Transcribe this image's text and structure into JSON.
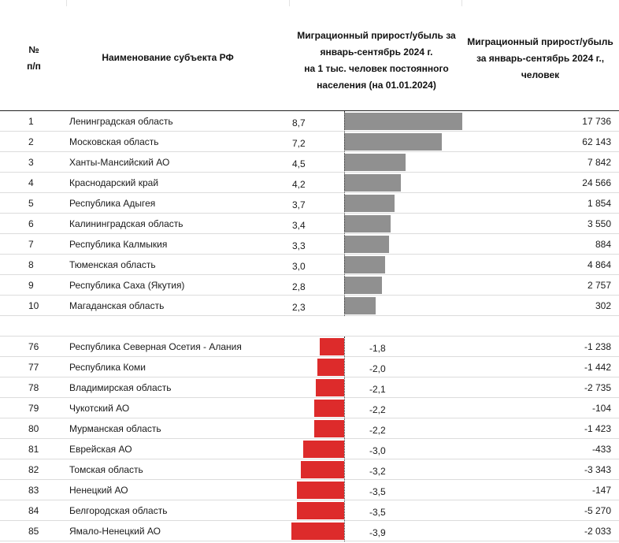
{
  "header": {
    "number": "№\nп/п",
    "name": "Наименование субъекта РФ",
    "rate": "Миграционный прирост/убыль за январь-сентябрь 2024 г.\nна 1 тыс. человек постоянного населения (на 01.01.2024)",
    "absolute": "Миграционный прирост/убыль за январь-сентябрь 2024 г., человек"
  },
  "chart_data": {
    "type": "bar",
    "orientation": "horizontal",
    "title": "Миграционный прирост/убыль за январь-сентябрь 2024 г.",
    "top": [
      {
        "num": "1",
        "name": "Ленинградская область",
        "rate": 8.7,
        "rate_label": "8,7",
        "absolute": "17 736"
      },
      {
        "num": "2",
        "name": "Московская область",
        "rate": 7.2,
        "rate_label": "7,2",
        "absolute": "62 143"
      },
      {
        "num": "3",
        "name": "Ханты-Мансийский АО",
        "rate": 4.5,
        "rate_label": "4,5",
        "absolute": "7 842"
      },
      {
        "num": "4",
        "name": "Краснодарский край",
        "rate": 4.2,
        "rate_label": "4,2",
        "absolute": "24 566"
      },
      {
        "num": "5",
        "name": "Республика Адыгея",
        "rate": 3.7,
        "rate_label": "3,7",
        "absolute": "1 854"
      },
      {
        "num": "6",
        "name": "Калининградская область",
        "rate": 3.4,
        "rate_label": "3,4",
        "absolute": "3 550"
      },
      {
        "num": "7",
        "name": "Республика Калмыкия",
        "rate": 3.3,
        "rate_label": "3,3",
        "absolute": "884"
      },
      {
        "num": "8",
        "name": "Тюменская область",
        "rate": 3.0,
        "rate_label": "3,0",
        "absolute": "4 864"
      },
      {
        "num": "9",
        "name": "Республика Саха (Якутия)",
        "rate": 2.8,
        "rate_label": "2,8",
        "absolute": "2 757"
      },
      {
        "num": "10",
        "name": "Магаданская область",
        "rate": 2.3,
        "rate_label": "2,3",
        "absolute": "302"
      }
    ],
    "bottom": [
      {
        "num": "76",
        "name": "Республика Северная Осетия - Алания",
        "rate": -1.8,
        "rate_label": "-1,8",
        "absolute": "-1 238"
      },
      {
        "num": "77",
        "name": "Республика Коми",
        "rate": -2.0,
        "rate_label": "-2,0",
        "absolute": "-1 442"
      },
      {
        "num": "78",
        "name": "Владимирская область",
        "rate": -2.1,
        "rate_label": "-2,1",
        "absolute": "-2 735"
      },
      {
        "num": "79",
        "name": "Чукотский АО",
        "rate": -2.2,
        "rate_label": "-2,2",
        "absolute": "-104"
      },
      {
        "num": "80",
        "name": "Мурманская область",
        "rate": -2.2,
        "rate_label": "-2,2",
        "absolute": "-1 423"
      },
      {
        "num": "81",
        "name": "Еврейская АО",
        "rate": -3.0,
        "rate_label": "-3,0",
        "absolute": "-433"
      },
      {
        "num": "82",
        "name": "Томская область",
        "rate": -3.2,
        "rate_label": "-3,2",
        "absolute": "-3 343"
      },
      {
        "num": "83",
        "name": "Ненецкий АО",
        "rate": -3.5,
        "rate_label": "-3,5",
        "absolute": "-147"
      },
      {
        "num": "84",
        "name": "Белгородская область",
        "rate": -3.5,
        "rate_label": "-3,5",
        "absolute": "-5 270"
      },
      {
        "num": "85",
        "name": "Ямало-Ненецкий АО",
        "rate": -3.9,
        "rate_label": "-3,9",
        "absolute": "-2 033"
      }
    ],
    "colors": {
      "positive": "#909090",
      "negative": "#dd2b2b"
    }
  }
}
